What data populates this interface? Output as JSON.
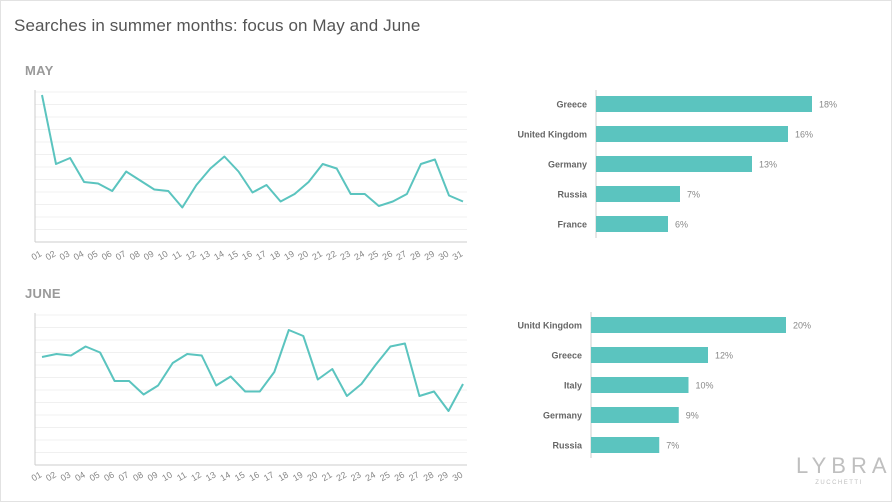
{
  "page": {
    "title": "Searches in summer months: focus on May and June",
    "brand": {
      "name": "LYBRA",
      "tagline": "ZUCCHETTI"
    }
  },
  "colors": {
    "series": "#5bc4bf",
    "grid": "#f0f0f0",
    "axis": "#cccccc",
    "tick_text": "#888888"
  },
  "chart_data": [
    {
      "id": "may-line",
      "type": "line",
      "title": "MAY",
      "x": [
        "01",
        "02",
        "03",
        "04",
        "05",
        "06",
        "07",
        "08",
        "09",
        "10",
        "11",
        "12",
        "13",
        "14",
        "15",
        "16",
        "17",
        "18",
        "19",
        "20",
        "21",
        "22",
        "23",
        "24",
        "25",
        "26",
        "27",
        "28",
        "29",
        "30",
        "31"
      ],
      "series": [
        {
          "values": [
            98,
            52,
            56,
            40,
            39,
            34,
            47,
            41,
            35,
            34,
            23,
            38,
            49,
            57,
            47,
            33,
            38,
            27,
            32,
            40,
            52,
            49,
            32,
            32,
            24,
            27,
            32,
            52,
            55,
            31,
            27
          ]
        }
      ],
      "ylim": [
        0,
        100
      ],
      "grid": true
    },
    {
      "id": "may-bar",
      "type": "bar",
      "orientation": "horizontal",
      "categories": [
        "Greece",
        "United Kingdom",
        "Germany",
        "Russia",
        "France"
      ],
      "values": [
        18,
        16,
        13,
        7,
        6
      ],
      "value_labels": [
        "18%",
        "16%",
        "13%",
        "7%",
        "6%"
      ],
      "xlim": [
        0,
        20
      ]
    },
    {
      "id": "june-line",
      "type": "line",
      "title": "JUNE",
      "x": [
        "01",
        "02",
        "03",
        "04",
        "05",
        "06",
        "07",
        "08",
        "09",
        "10",
        "11",
        "12",
        "13",
        "14",
        "15",
        "16",
        "17",
        "18",
        "19",
        "20",
        "21",
        "22",
        "23",
        "24",
        "25",
        "26",
        "27",
        "28",
        "29",
        "30"
      ],
      "series": [
        {
          "values": [
            72,
            74,
            73,
            79,
            75,
            56,
            56,
            47,
            53,
            68,
            74,
            73,
            53,
            59,
            49,
            49,
            62,
            90,
            86,
            57,
            64,
            46,
            54,
            67,
            79,
            81,
            46,
            49,
            36,
            54
          ]
        }
      ],
      "ylim": [
        0,
        100
      ],
      "grid": true
    },
    {
      "id": "june-bar",
      "type": "bar",
      "orientation": "horizontal",
      "categories": [
        "Unitd Kingdom",
        "Greece",
        "Italy",
        "Germany",
        "Russia"
      ],
      "values": [
        20,
        12,
        10,
        9,
        7
      ],
      "value_labels": [
        "20%",
        "12%",
        "10%",
        "9%",
        "7%"
      ],
      "xlim": [
        0,
        20
      ]
    }
  ]
}
